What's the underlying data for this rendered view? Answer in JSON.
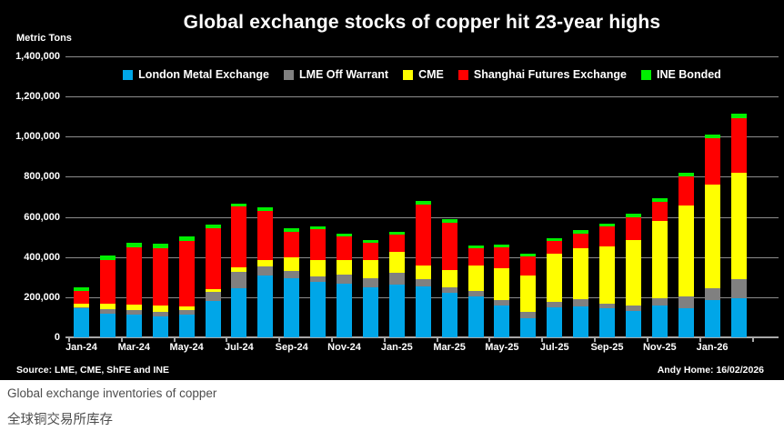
{
  "header": {
    "y_axis_label": "Metric Tons",
    "title": "Global exchange stocks of copper hit 23-year highs"
  },
  "footer": {
    "source": "Source: LME, CME, ShFE and INE",
    "credit": "Andy Home: 16/02/2026"
  },
  "captions": {
    "english": "Global exchange inventories of copper",
    "chinese": "全球铜交易所库存"
  },
  "colors": {
    "background": "#000000",
    "text": "#ffffff",
    "gridline": "#8d8d8d",
    "caption_text": "#4d4d4d"
  },
  "chart_data": {
    "type": "bar",
    "stacked": true,
    "title": "Global exchange stocks of copper hit 23-year highs",
    "ylabel": "Metric Tons",
    "ylim": [
      0,
      1400000
    ],
    "ytick_step": 200000,
    "grid": true,
    "legend_position": "top-center",
    "categories": [
      "Jan-24",
      "Feb-24",
      "Mar-24",
      "Apr-24",
      "May-24",
      "Jun-24",
      "Jul-24",
      "Aug-24",
      "Sep-24",
      "Oct-24",
      "Nov-24",
      "Dec-24",
      "Jan-25",
      "Feb-25",
      "Mar-25",
      "Apr-25",
      "May-25",
      "Jun-25",
      "Jul-25",
      "Aug-25",
      "Sep-25",
      "Oct-25",
      "Nov-25",
      "Dec-25",
      "Jan-26",
      "Feb-26"
    ],
    "xtick_labels": [
      "Jan-24",
      "Mar-24",
      "May-24",
      "Jul-24",
      "Sep-24",
      "Nov-24",
      "Jan-25",
      "Mar-25",
      "May-25",
      "Jul-25",
      "Sep-25",
      "Nov-25",
      "Jan-26"
    ],
    "series": [
      {
        "name": "London Metal Exchange",
        "color": "#00A6E8",
        "values": [
          145000,
          120000,
          112000,
          103000,
          113000,
          180000,
          244000,
          310000,
          294000,
          276000,
          266000,
          251000,
          262000,
          255000,
          223000,
          204000,
          158000,
          95000,
          152000,
          153000,
          146000,
          131000,
          158000,
          146000,
          187000,
          196000
        ]
      },
      {
        "name": "LME Off Warrant",
        "color": "#808080",
        "values": [
          5000,
          20000,
          25000,
          22000,
          22000,
          48000,
          83000,
          45000,
          35000,
          30000,
          45000,
          45000,
          60000,
          35000,
          26000,
          27000,
          27000,
          30000,
          26000,
          38000,
          22000,
          30000,
          38000,
          60000,
          57000,
          93000
        ]
      },
      {
        "name": "CME",
        "color": "#FFFF00",
        "values": [
          20000,
          27000,
          25000,
          32000,
          21000,
          14000,
          22000,
          30000,
          68000,
          79000,
          75000,
          91000,
          102000,
          70000,
          87000,
          128000,
          158000,
          184000,
          237000,
          251000,
          286000,
          324000,
          386000,
          452000,
          519000,
          531000
        ]
      },
      {
        "name": "Shanghai Futures Exchange",
        "color": "#FF0000",
        "values": [
          60000,
          220000,
          285000,
          286000,
          325000,
          300000,
          304000,
          245000,
          129000,
          155000,
          115000,
          86000,
          88000,
          300000,
          237000,
          86000,
          105000,
          95000,
          65000,
          76000,
          98000,
          113000,
          95000,
          143000,
          230000,
          271000
        ]
      },
      {
        "name": "INE Bonded",
        "color": "#00EE00",
        "values": [
          20000,
          22000,
          25000,
          24000,
          21000,
          18000,
          15000,
          16000,
          17000,
          15000,
          15000,
          14000,
          15000,
          19000,
          15000,
          15000,
          15000,
          11000,
          15000,
          15000,
          15000,
          18000,
          18000,
          18000,
          18000,
          23000
        ]
      }
    ]
  }
}
